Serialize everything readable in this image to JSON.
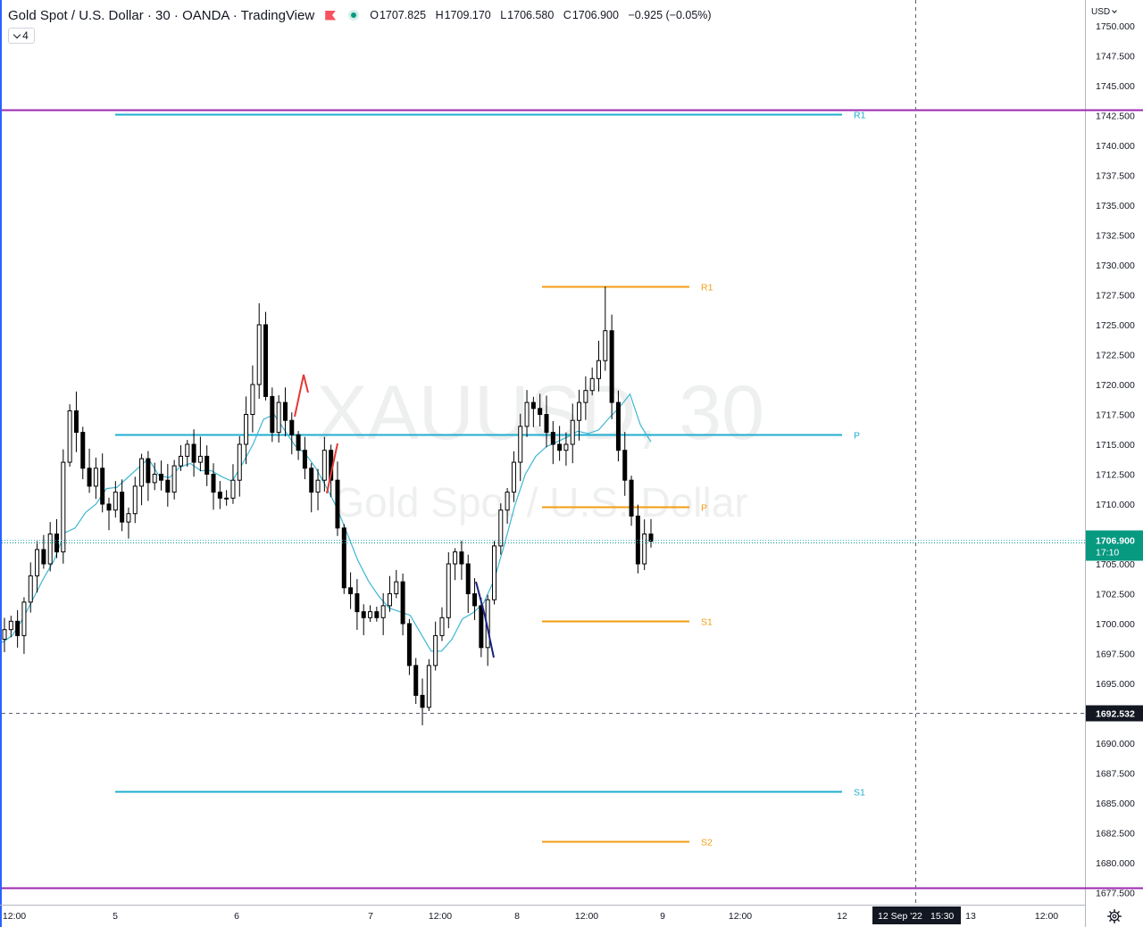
{
  "legend": {
    "symbol": "Gold Spot / U.S. Dollar · 30 · OANDA · TradingView",
    "open_label": "O",
    "open": "1707.825",
    "high_label": "H",
    "high": "1709.170",
    "low_label": "L",
    "low": "1706.580",
    "close_label": "C",
    "close": "1706.900",
    "change": "−0.925 (−0.05%)",
    "collapsed_count": "4"
  },
  "price_axis": {
    "currency": "USD",
    "labels": [
      "1750.000",
      "1747.500",
      "1745.000",
      "1742.500",
      "1740.000",
      "1737.500",
      "1735.000",
      "1732.500",
      "1730.000",
      "1727.500",
      "1725.000",
      "1722.500",
      "1720.000",
      "1717.500",
      "1715.000",
      "1712.500",
      "1710.000",
      "1707.500",
      "1705.000",
      "1702.500",
      "1700.000",
      "1697.500",
      "1695.000",
      "1692.500",
      "1690.000",
      "1687.500",
      "1685.000",
      "1682.500",
      "1680.000",
      "1677.500"
    ]
  },
  "time_axis": {
    "labels": [
      "12:00",
      "5",
      "6",
      "7",
      "12:00",
      "8",
      "12:00",
      "9",
      "12:00",
      "12",
      "13",
      "12:00"
    ],
    "crosshair_date": "12 Sep '22",
    "crosshair_time": "15:30"
  },
  "watermark": {
    "symbol": "XAUUSD, 30",
    "description": "Gold Spot / U.S. Dollar"
  },
  "current_price": {
    "price": "1706.900",
    "countdown": "17:10",
    "color": "#089981"
  },
  "crosshair_price": "1692.532",
  "colors": {
    "weekly_pivots": "#1eaed0",
    "daily_pivots": "#f39c12",
    "horizontal_lines": "#9c27b0",
    "moving_average": "#3fb6d3",
    "candles": "#000000",
    "drawing_red": "#e53935",
    "drawing_navy": "#1a237e"
  },
  "chart_data": {
    "type": "candlestick",
    "symbol": "XAUUSD",
    "interval": "30",
    "ylim": [
      1675.8,
      1751.3
    ],
    "series_close": [
      1699.5,
      1700.2,
      1699.0,
      1701.8,
      1704.0,
      1706.2,
      1705.0,
      1707.5,
      1706.0,
      1713.5,
      1717.8,
      1716.0,
      1713.0,
      1711.5,
      1713.0,
      1710.0,
      1709.5,
      1711.0,
      1708.5,
      1709.2,
      1711.5,
      1713.8,
      1711.8,
      1712.5,
      1712.0,
      1711.0,
      1713.2,
      1714.0,
      1715.0,
      1713.5,
      1714.0,
      1712.5,
      1711.0,
      1710.5,
      1710.5,
      1712.0,
      1715.0,
      1717.5,
      1720.0,
      1725.0,
      1719.0,
      1716.0,
      1718.5,
      1717.0,
      1715.8,
      1714.5,
      1713.0,
      1711.0,
      1712.0,
      1714.5,
      1712.0,
      1708.0,
      1703.0,
      1702.5,
      1701.0,
      1700.5,
      1701.0,
      1700.5,
      1701.5,
      1702.5,
      1703.5,
      1700.0,
      1696.5,
      1694.0,
      1693.0,
      1696.5,
      1699.0,
      1700.5,
      1705.0,
      1706.0,
      1705.0,
      1702.5,
      1701.5,
      1698.0,
      1702.0,
      1706.5,
      1709.5,
      1711.0,
      1713.5,
      1716.5,
      1718.5,
      1718.0,
      1717.5,
      1716.0,
      1715.0,
      1714.5,
      1715.0,
      1717.0,
      1718.5,
      1719.5,
      1720.5,
      1722.0,
      1724.5,
      1718.5,
      1714.5,
      1712.0,
      1709.0,
      1705.0,
      1707.5,
      1706.9
    ],
    "ma_values": [
      1698.4,
      1699.0,
      1700.4,
      1702.1,
      1703.8,
      1705.3,
      1707.6,
      1708.0,
      1709.3,
      1710.0,
      1711.3,
      1711.4,
      1712.2,
      1713.0,
      1713.8,
      1712.4,
      1712.2,
      1713.1,
      1713.4,
      1712.8,
      1712.8,
      1712.3,
      1711.9,
      1713.4,
      1715.0,
      1717.1,
      1717.5,
      1716.2,
      1714.9,
      1714.2,
      1713.0,
      1711.4,
      1709.7,
      1707.5,
      1705.3,
      1703.6,
      1702.3,
      1701.3,
      1701.0,
      1700.7,
      1699.2,
      1697.7,
      1697.7,
      1698.7,
      1700.4,
      1700.9,
      1701.7,
      1703.6,
      1706.6,
      1709.9,
      1712.5,
      1714.0,
      1714.8,
      1715.2,
      1715.6,
      1716.1,
      1715.9,
      1716.2,
      1717.2,
      1718.1,
      1719.2,
      1716.6,
      1715.2
    ],
    "pivots_weekly": {
      "R1": 1742.6,
      "P": 1715.8,
      "S1": 1686.0
    },
    "pivots_daily": {
      "R1": 1728.2,
      "P": 1709.8,
      "S1": 1700.2,
      "S2": 1681.8
    },
    "horizontal_lines": [
      1743.0,
      1677.9
    ],
    "pivot_labels": [
      "R1",
      "P",
      "S1",
      "R1",
      "P",
      "S1",
      "S2"
    ],
    "current_price": 1706.9,
    "crosshair_price": 1692.532
  }
}
